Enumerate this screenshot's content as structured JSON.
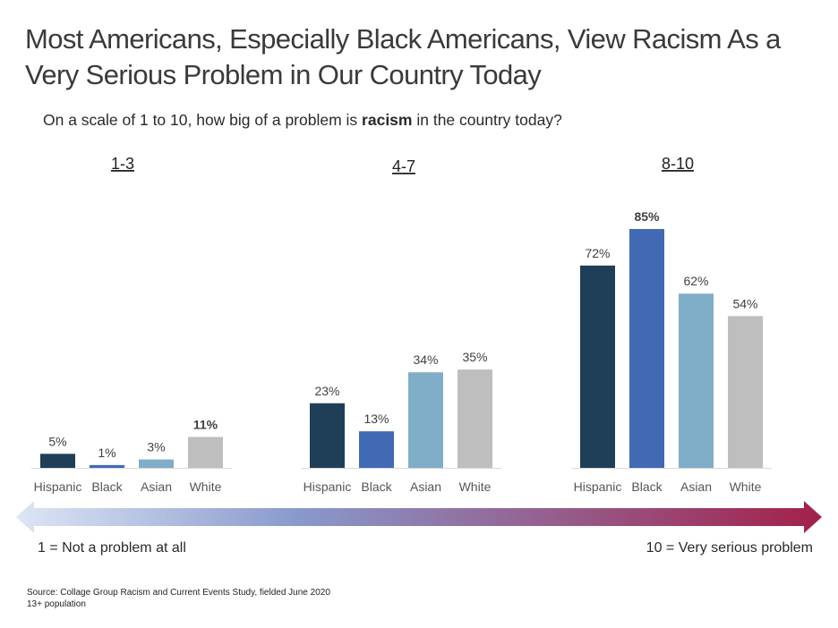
{
  "title": "Most Americans, Especially Black Americans, View Racism As a Very Serious Problem in Our Country Today",
  "subtitle": {
    "before": "On a scale of 1 to 10, how big of a problem is ",
    "bold": "racism",
    "after": " in the country today?"
  },
  "scale_left": "1 = Not a problem at all",
  "scale_right": "10 = Very serious problem",
  "source_line1": "Source: Collage Group Racism and Current Events Study, fielded June 2020",
  "source_line2": "13+ population",
  "colors": {
    "Hispanic": "#1f3f58",
    "Black": "#4169b4",
    "Asian": "#80aec8",
    "White": "#bebebe",
    "arrow_start": "#dde6f5",
    "arrow_mid": "#8899cc",
    "arrow_end": "#a3204a"
  },
  "chart_data": {
    "type": "bar",
    "categories": [
      "Hispanic",
      "Black",
      "Asian",
      "White"
    ],
    "ylim": [
      0,
      85
    ],
    "groups": [
      {
        "label": "1-3",
        "values": [
          5,
          1,
          3,
          11
        ],
        "labels": [
          "5%",
          "1%",
          "3%",
          "11%"
        ],
        "bold_index": 3
      },
      {
        "label": "4-7",
        "values": [
          23,
          13,
          34,
          35
        ],
        "labels": [
          "23%",
          "13%",
          "34%",
          "35%"
        ],
        "bold_index": -1
      },
      {
        "label": "8-10",
        "values": [
          72,
          85,
          62,
          54
        ],
        "labels": [
          "72%",
          "85%",
          "62%",
          "54%"
        ],
        "bold_index": 1
      }
    ]
  }
}
